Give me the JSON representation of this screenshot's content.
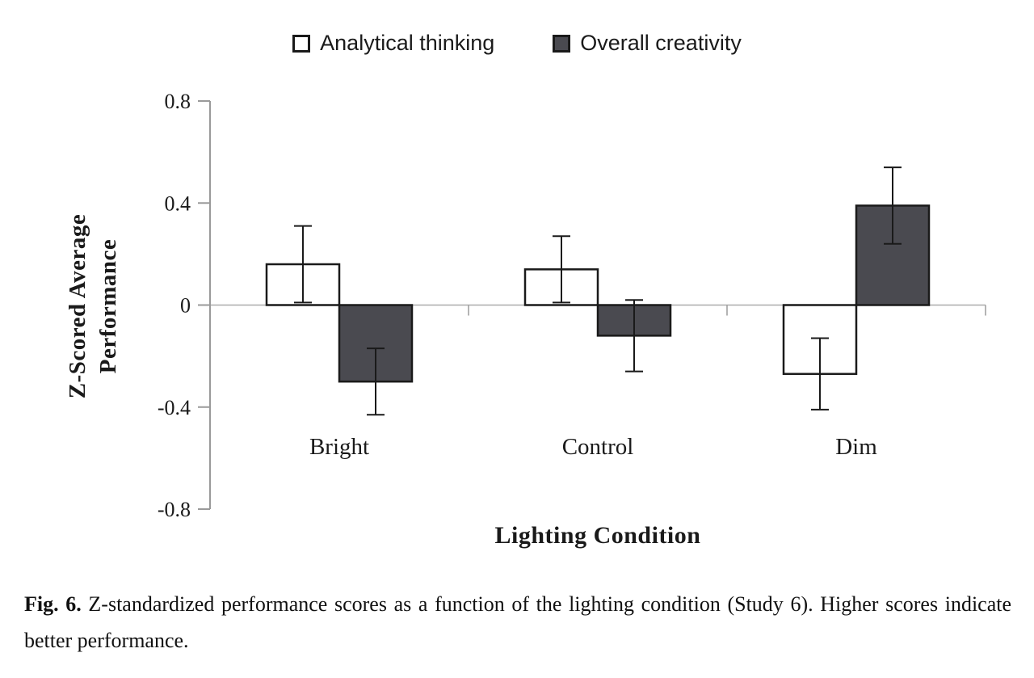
{
  "chart_data": {
    "type": "bar",
    "categories": [
      "Bright",
      "Control",
      "Dim"
    ],
    "series": [
      {
        "name": "Analytical thinking",
        "color": "#ffffff",
        "values": [
          0.16,
          0.14,
          -0.27
        ],
        "errors": [
          0.15,
          0.13,
          0.14
        ]
      },
      {
        "name": "Overall creativity",
        "color": "#4a4a50",
        "values": [
          -0.3,
          -0.12,
          0.39
        ],
        "errors": [
          0.13,
          0.14,
          0.15
        ]
      }
    ],
    "title": "",
    "xlabel": "Lighting Condition",
    "ylabel": "Z-Scored Average Performance",
    "ylim": [
      -0.8,
      0.8
    ],
    "yticks": [
      0.8,
      0.4,
      0,
      -0.4,
      -0.8
    ],
    "grid": false,
    "legend_position": "top",
    "axis_color": "#9a9a9a",
    "zero_line_color": "#ababab",
    "bar_stroke_color": "#1a1a1a"
  },
  "caption": {
    "label": "Fig. 6.",
    "text": "Z-standardized performance scores as a function of the lighting condition (Study 6). Higher scores indicate better performance."
  }
}
